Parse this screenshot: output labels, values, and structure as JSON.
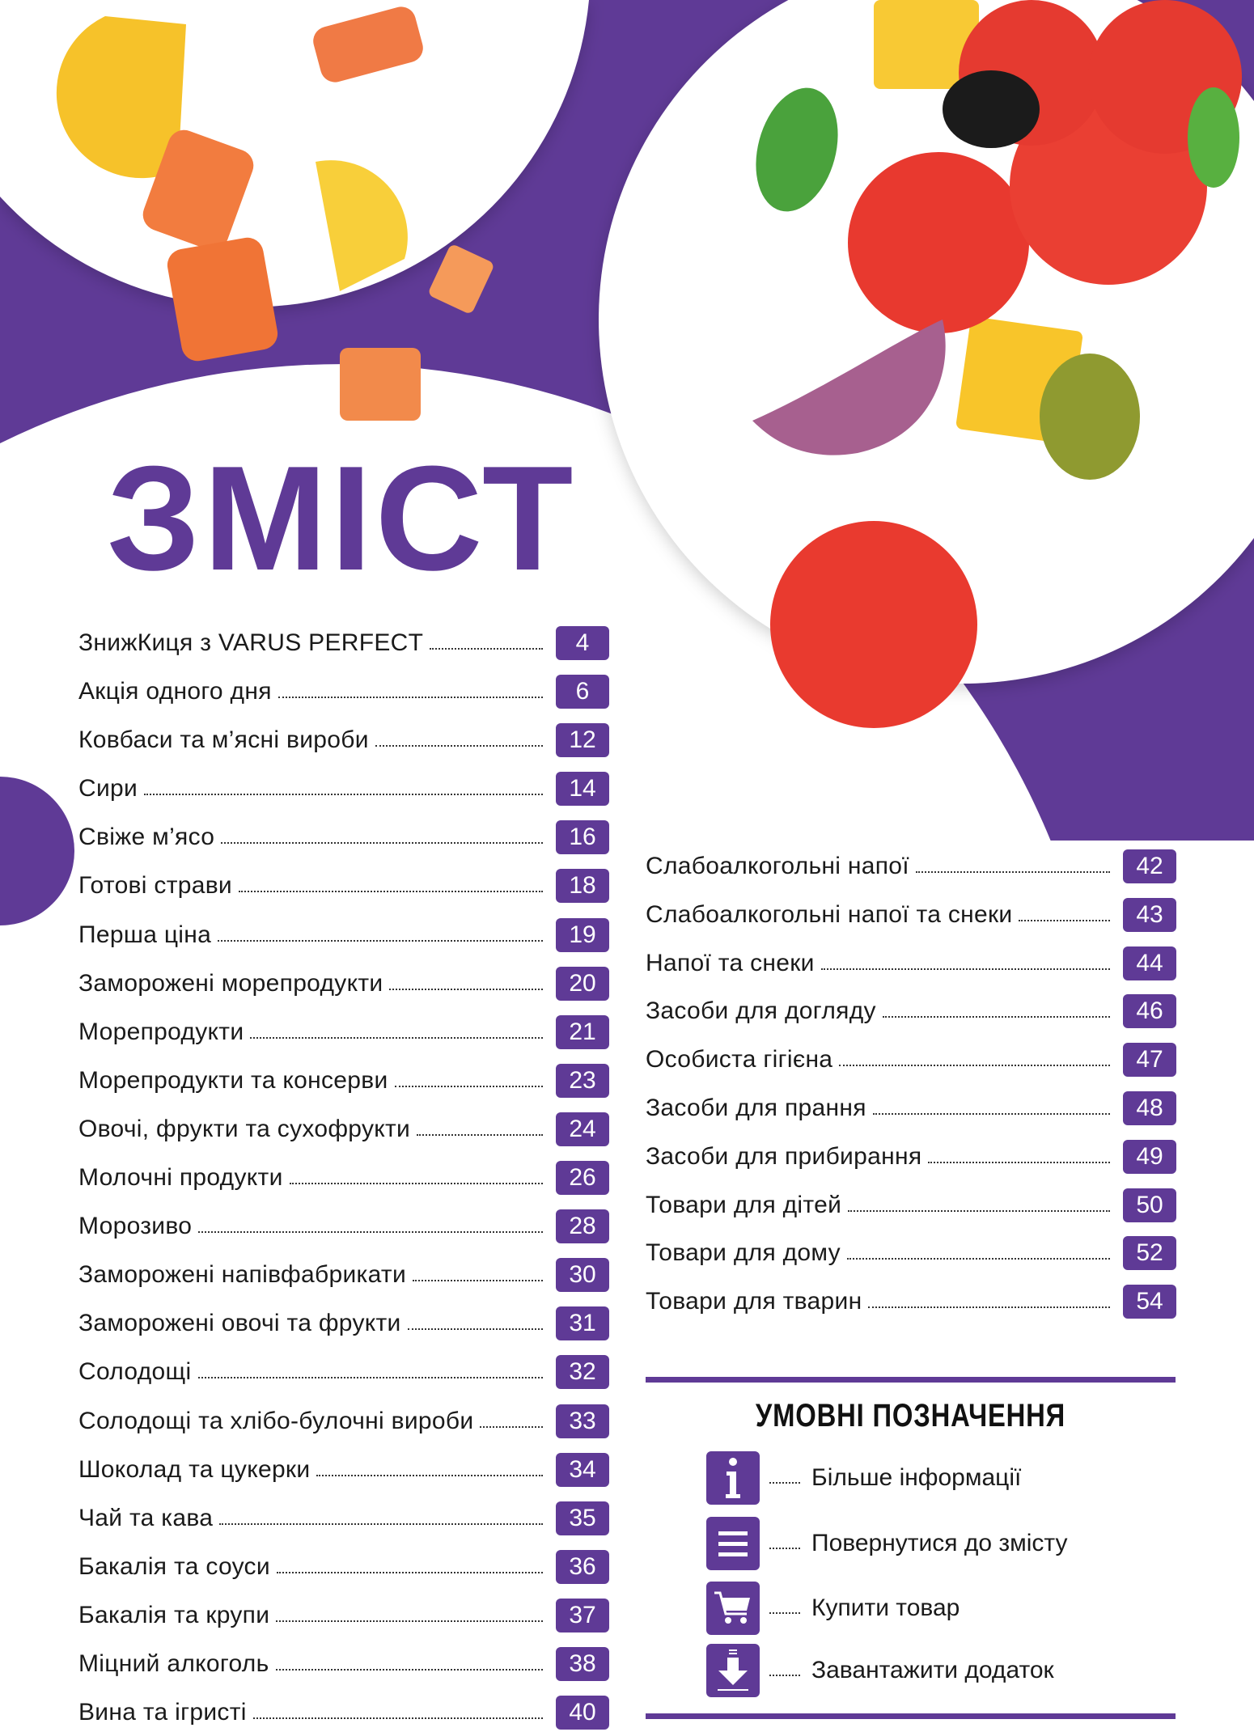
{
  "colors": {
    "accent": "#5f3a96",
    "text": "#1a1a1a",
    "badge_text": "#ffffff"
  },
  "title": "ЗМІСТ",
  "toc_left": [
    {
      "label": "ЗнижКиця з VARUS PERFECT",
      "page": "4"
    },
    {
      "label": "Акція одного дня",
      "page": "6"
    },
    {
      "label": "Ковбаси та м’ясні вироби",
      "page": "12"
    },
    {
      "label": "Сири",
      "page": "14"
    },
    {
      "label": "Свіже м’ясо",
      "page": "16"
    },
    {
      "label": "Готові страви",
      "page": "18"
    },
    {
      "label": "Перша ціна",
      "page": "19"
    },
    {
      "label": "Заморожені морепродукти",
      "page": "20"
    },
    {
      "label": "Морепродукти",
      "page": "21"
    },
    {
      "label": "Морепродукти та консерви",
      "page": "23"
    },
    {
      "label": "Овочі, фрукти та сухофрукти",
      "page": "24"
    },
    {
      "label": "Молочні продукти",
      "page": "26"
    },
    {
      "label": "Морозиво",
      "page": "28"
    },
    {
      "label": "Заморожені напівфабрикати",
      "page": "30"
    },
    {
      "label": "Заморожені овочі та фрукти",
      "page": "31"
    },
    {
      "label": "Солодощі",
      "page": "32"
    },
    {
      "label": "Солодощі та хлібо-булочні вироби",
      "page": "33"
    },
    {
      "label": "Шоколад та цукерки",
      "page": "34"
    },
    {
      "label": "Чай та кава",
      "page": "35"
    },
    {
      "label": "Бакалія та соуси",
      "page": "36"
    },
    {
      "label": "Бакалія та крупи",
      "page": "37"
    },
    {
      "label": "Міцний алкоголь",
      "page": "38"
    },
    {
      "label": "Вина та ігристі",
      "page": "40"
    }
  ],
  "toc_right": [
    {
      "label": "Слабоалкогольні напої",
      "page": "42"
    },
    {
      "label": "Слабоалкогольні напої та снеки",
      "page": "43"
    },
    {
      "label": "Напої та снеки",
      "page": "44"
    },
    {
      "label": "Засоби для догляду",
      "page": "46"
    },
    {
      "label": "Особиста гігієна",
      "page": "47"
    },
    {
      "label": "Засоби для прання",
      "page": "48"
    },
    {
      "label": "Засоби для прибирання",
      "page": "49"
    },
    {
      "label": "Товари для дітей",
      "page": "50"
    },
    {
      "label": "Товари для дому",
      "page": "52"
    },
    {
      "label": "Товари для тварин",
      "page": "54"
    }
  ],
  "legend": {
    "title": "УМОВНІ ПОЗНАЧЕННЯ",
    "items": [
      {
        "icon": "info-icon",
        "label": "Більше інформації"
      },
      {
        "icon": "menu-icon",
        "label": "Повернутися до змісту"
      },
      {
        "icon": "cart-icon",
        "label": "Купити товар"
      },
      {
        "icon": "download-icon",
        "label": "Завантажити додаток"
      }
    ]
  }
}
